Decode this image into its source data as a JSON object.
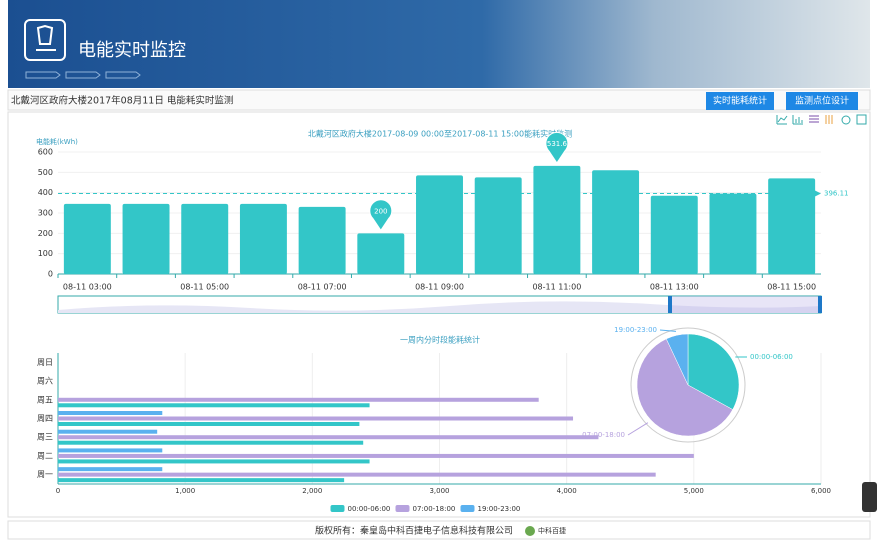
{
  "header": {
    "title": "电能实时监控"
  },
  "toolbar": {
    "caption": "北戴河区政府大楼2017年08月11日 电能耗实时监测",
    "buttons": [
      "实时能耗统计",
      "监测点位设计"
    ]
  },
  "footer": {
    "copyright": "版权所有：秦皇岛中科百捷电子信息科技有限公司",
    "logo_text": "中科百捷"
  },
  "chart_data": [
    {
      "type": "bar",
      "title": "北戴河区政府大楼2017-08-09 00:00至2017-08-11 15:00能耗实时监测",
      "y_label": "电能耗(kWh)",
      "categories": [
        "08-11 03:00",
        null,
        "08-11 05:00",
        null,
        "08-11 07:00",
        null,
        "08-11 09:00",
        null,
        "08-11 11:00",
        null,
        "08-11 13:00",
        null,
        "08-11 15:00"
      ],
      "values": [
        345,
        345,
        345,
        345,
        330,
        200,
        485,
        475,
        531.6,
        510,
        385,
        395,
        470
      ],
      "color": "#33c6c8",
      "ylim": [
        0,
        600
      ],
      "yticks": [
        0,
        100,
        200,
        300,
        400,
        500,
        600
      ],
      "mark_line": 396.11,
      "grid": true
    },
    {
      "type": "bar",
      "orientation": "horizontal",
      "title": "一周内分时段能耗统计",
      "categories": [
        "周一",
        "周二",
        "周三",
        "周四",
        "周五",
        "周六",
        "周日"
      ],
      "series": [
        {
          "name": "00:00-06:00",
          "color": "#33c6c8",
          "values": [
            2250,
            2450,
            2400,
            2370,
            2450,
            0,
            0
          ]
        },
        {
          "name": "07:00-18:00",
          "color": "#b6a2de",
          "values": [
            4700,
            5000,
            4250,
            4050,
            3780,
            0,
            0
          ]
        },
        {
          "name": "19:00-23:00",
          "color": "#5ab1ef",
          "values": [
            820,
            820,
            780,
            820,
            0,
            0,
            0
          ]
        }
      ],
      "xlim": [
        0,
        6000
      ],
      "xticks": [
        0,
        {
          "value": 1000,
          "label": "1,000"
        },
        {
          "value": 2000,
          "label": "2,000"
        },
        {
          "value": 3000,
          "label": "3,000"
        },
        {
          "value": 4000,
          "label": "4,000"
        },
        {
          "value": 5000,
          "label": "5,000"
        },
        {
          "value": 6000,
          "label": "6,000"
        }
      ],
      "grid": true
    },
    {
      "type": "pie",
      "categories": [
        "00:00-06:00",
        "07:00-18:00",
        "19:00-23:00"
      ],
      "values": [
        33,
        60,
        7
      ],
      "colors": [
        "#33c6c8",
        "#b6a2de",
        "#5ab1ef"
      ]
    }
  ]
}
